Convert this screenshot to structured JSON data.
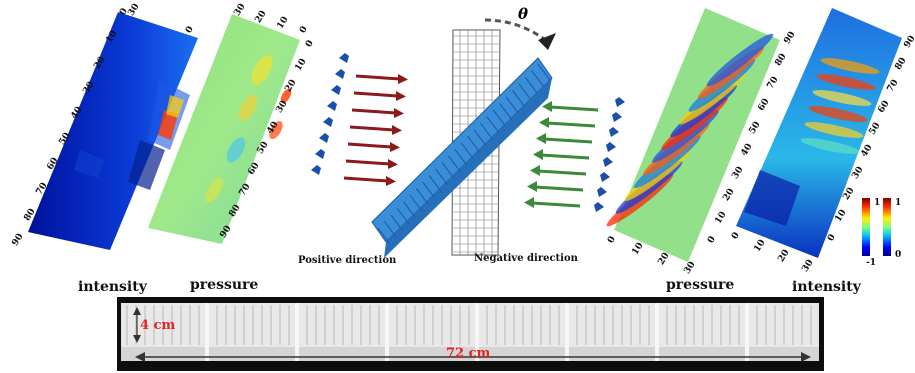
{
  "figure": {
    "left_panels": {
      "intensity_label": "intensity",
      "pressure_label": "pressure",
      "intensity_long_axis_ticks": [
        "0",
        "10",
        "20",
        "30",
        "40",
        "50",
        "60",
        "70",
        "80",
        "90"
      ],
      "intensity_short_axis_ticks": [
        "30",
        "0"
      ],
      "pressure_long_axis_ticks": [
        "0",
        "10",
        "20",
        "30",
        "40",
        "50",
        "60",
        "70",
        "80",
        "90"
      ],
      "pressure_short_axis_ticks": [
        "30",
        "20",
        "10",
        "0"
      ]
    },
    "right_panels": {
      "pressure_label": "pressure",
      "intensity_label": "intensity",
      "pressure_long_axis_ticks": [
        "0",
        "10",
        "20",
        "30",
        "40",
        "50",
        "60",
        "70",
        "80",
        "90"
      ],
      "pressure_short_axis_ticks": [
        "0",
        "10",
        "20",
        "30"
      ],
      "intensity_long_axis_ticks": [
        "0",
        "10",
        "20",
        "30",
        "40",
        "50",
        "60",
        "70",
        "80",
        "90"
      ],
      "intensity_short_axis_ticks": [
        "0",
        "10",
        "20",
        "30"
      ]
    },
    "colorbars": {
      "pressure": {
        "max_label": "1",
        "min_label": "-1"
      },
      "intensity": {
        "max_label": "1",
        "min_label": "0"
      }
    },
    "center": {
      "rotation_symbol": "θ",
      "positive_label": "Positive direction",
      "negative_label": "Negative direction",
      "positive_arrow_color": "#8b1a1a",
      "negative_arrow_color": "#3a8a3a",
      "source_color": "#1c4fa8",
      "sample_color": "#3a8ed8"
    },
    "photo": {
      "height_label": "4 cm",
      "length_label": "72 cm",
      "label_color": "#e52222"
    }
  }
}
